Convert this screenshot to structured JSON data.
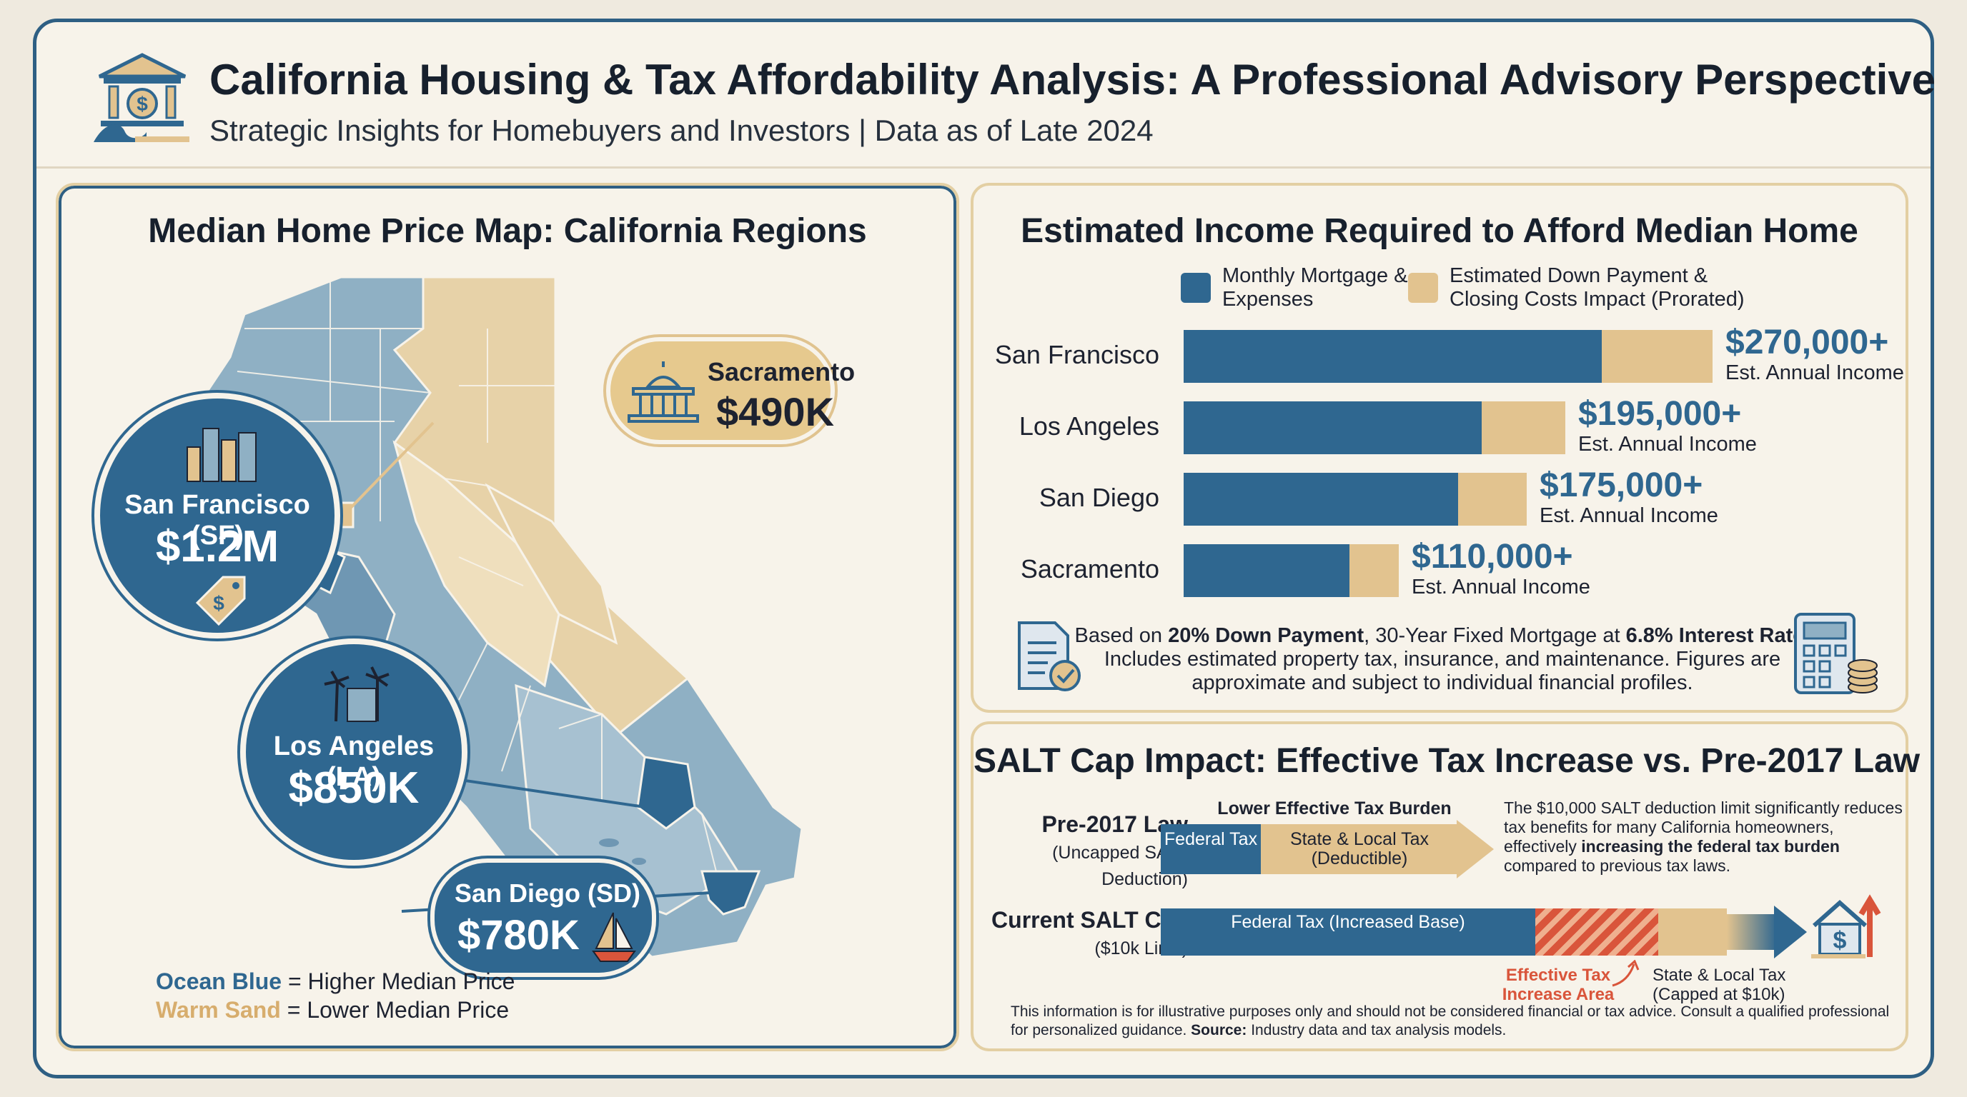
{
  "header": {
    "title": "California Housing & Tax Affordability Analysis: A Professional Advisory Perspective",
    "subtitle": "Strategic Insights for Homebuyers and Investors | Data as of Late 2024",
    "logo_icon": "bank-with-dollar-and-wave-icon"
  },
  "colors": {
    "ocean_blue": "#2f6790",
    "warm_sand": "#e2c38f",
    "frame": "#2e5f83",
    "accent_red": "#d9553b"
  },
  "map": {
    "title": "Median Home Price Map: California Regions",
    "sacramento": {
      "name": "Sacramento",
      "price": "$490K"
    },
    "san_francisco": {
      "name": "San Francisco (SF)",
      "price": "$1.2M"
    },
    "los_angeles": {
      "name": "Los Angeles (LA)",
      "price": "$850K"
    },
    "san_diego": {
      "name": "San Diego (SD)",
      "price": "$780K"
    },
    "legend": {
      "blue_word": "Ocean Blue",
      "blue_text": "= Higher Median Price",
      "sand_word": "Warm Sand",
      "sand_text": "= Lower Median Price"
    }
  },
  "income": {
    "title": "Estimated Income Required to Afford Median Home",
    "legend_mortgage": "Monthly Mortgage & Expenses",
    "legend_down": "Estimated Down Payment & Closing Costs Impact (Prorated)",
    "rows": [
      {
        "label": "San Francisco",
        "amount": "$270,000+",
        "sub": "Est. Annual Income",
        "income": 270000
      },
      {
        "label": "Los Angeles",
        "amount": "$195,000+",
        "sub": "Est. Annual Income",
        "income": 195000
      },
      {
        "label": "San Diego",
        "amount": "$175,000+",
        "sub": "Est. Annual Income",
        "income": 175000
      },
      {
        "label": "Sacramento",
        "amount": "$110,000+",
        "sub": "Est. Annual Income",
        "income": 110000
      }
    ],
    "note_a": "Based on ",
    "note_b": "20% Down Payment",
    "note_c": ", 30-Year Fixed Mortgage at ",
    "note_d": "6.8% Interest Rate",
    "note_e": ". Includes estimated property tax, insurance, and maintenance. Figures are approximate and subject to individual financial profiles."
  },
  "salt": {
    "title": "SALT Cap Impact: Effective Tax Increase vs. Pre-2017 Law",
    "pre_label": "Pre-2017 Law",
    "pre_sub": "(Uncapped SALT Deduction)",
    "lower_burden": "Lower Effective Tax Burden",
    "pre_federal": "Federal Tax",
    "pre_state": "State & Local Tax (Deductible)",
    "desc_a": "The $10,000 SALT deduction limit significantly reduces tax benefits for many California homeowners, effectively ",
    "desc_b": "increasing the federal tax burden",
    "desc_c": " compared to previous tax laws.",
    "cur_label": "Current SALT Cap",
    "cur_sub": "($10k Limit)",
    "cur_federal": "Federal Tax (Increased Base)",
    "effective": "Effective Tax Increase Area",
    "capped": "State & Local Tax (Capped at $10k)",
    "disclaimer_a": "This information is for illustrative purposes only and should not be considered financial or tax advice. Consult a qualified professional for personalized guidance. ",
    "disclaimer_b": "Source:",
    "disclaimer_c": " Industry data and tax analysis models."
  }
}
